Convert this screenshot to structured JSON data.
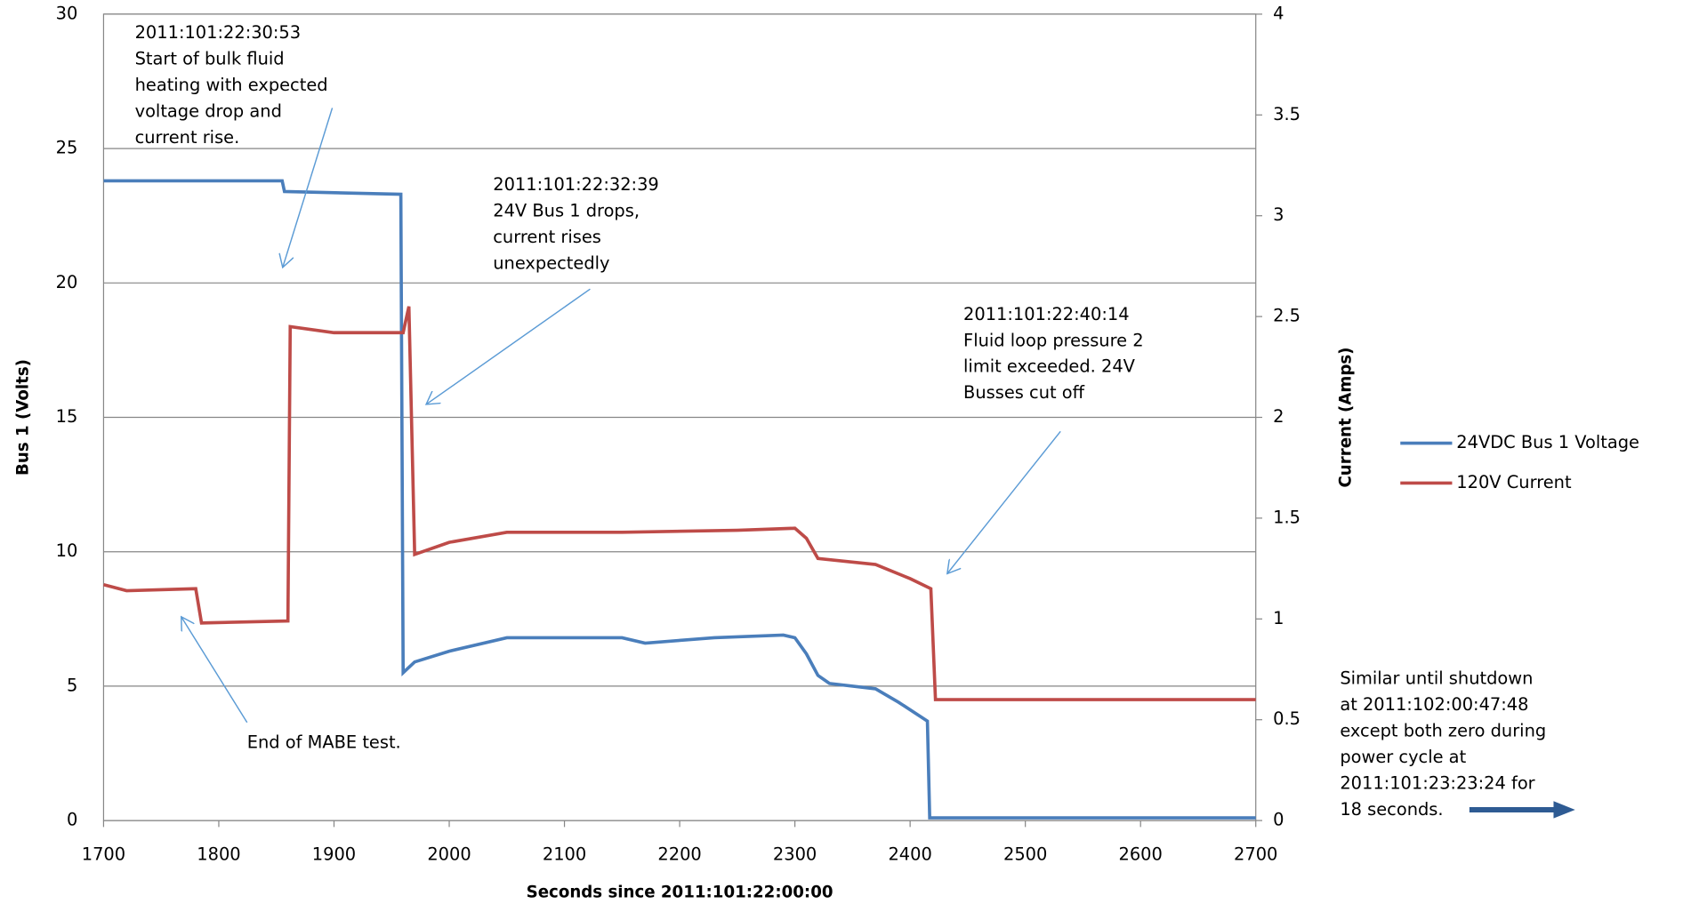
{
  "chart_data": {
    "type": "line",
    "x_label": "Seconds since 2011:101:22:00:00",
    "y_label": "Bus 1 (Volts)",
    "y2_label": "Current (Amps)",
    "xlim": [
      1700,
      2700
    ],
    "xticks": [
      1700,
      1800,
      1900,
      2000,
      2100,
      2200,
      2300,
      2400,
      2500,
      2600,
      2700
    ],
    "ylim": [
      0,
      30
    ],
    "yticks": [
      0,
      5,
      10,
      15,
      20,
      25,
      30
    ],
    "y2lim": [
      0,
      4
    ],
    "y2ticks": [
      0,
      0.5,
      1,
      1.5,
      2,
      2.5,
      3,
      3.5,
      4
    ],
    "grid": true,
    "legend": "right",
    "series": [
      {
        "name": "24VDC Bus 1 Voltage",
        "color": "#4a7ebb",
        "x": [
          1700,
          1855,
          1857,
          1958,
          1960,
          1970,
          2000,
          2050,
          2150,
          2170,
          2200,
          2230,
          2290,
          2300,
          2310,
          2320,
          2330,
          2370,
          2390,
          2415,
          2417,
          2700
        ],
        "values": [
          23.8,
          23.8,
          23.4,
          23.3,
          5.5,
          5.9,
          6.3,
          6.8,
          6.8,
          6.6,
          6.7,
          6.8,
          6.9,
          6.8,
          6.2,
          5.4,
          5.1,
          4.9,
          4.4,
          3.7,
          0.1,
          0.1
        ]
      },
      {
        "name": "120V Current",
        "color": "#be4b48",
        "axis": "y2",
        "x": [
          1700,
          1720,
          1780,
          1785,
          1860,
          1862,
          1900,
          1960,
          1965,
          1970,
          2000,
          2050,
          2150,
          2250,
          2300,
          2310,
          2320,
          2370,
          2400,
          2418,
          2422,
          2700
        ],
        "values": [
          1.17,
          1.14,
          1.15,
          0.98,
          0.99,
          2.45,
          2.42,
          2.42,
          2.55,
          1.32,
          1.38,
          1.43,
          1.43,
          1.44,
          1.45,
          1.4,
          1.3,
          1.27,
          1.2,
          1.15,
          0.6,
          0.6
        ]
      }
    ],
    "annotations": [
      [
        "2011:101:22:30:53",
        "Start of bulk fluid",
        "heating with expected",
        "voltage drop and",
        "current rise."
      ],
      [
        "2011:101:22:32:39",
        "24V Bus 1 drops,",
        "current rises",
        "unexpectedly"
      ],
      [
        "2011:101:22:40:14",
        "Fluid loop pressure 2",
        "limit exceeded.  24V",
        "Busses cut off"
      ],
      [
        "End of MABE test."
      ],
      [
        "Similar until shutdown",
        "at 2011:102:00:47:48",
        "except both zero during",
        "power cycle at",
        "2011:101:23:23:24 for",
        "18 seconds."
      ]
    ]
  }
}
